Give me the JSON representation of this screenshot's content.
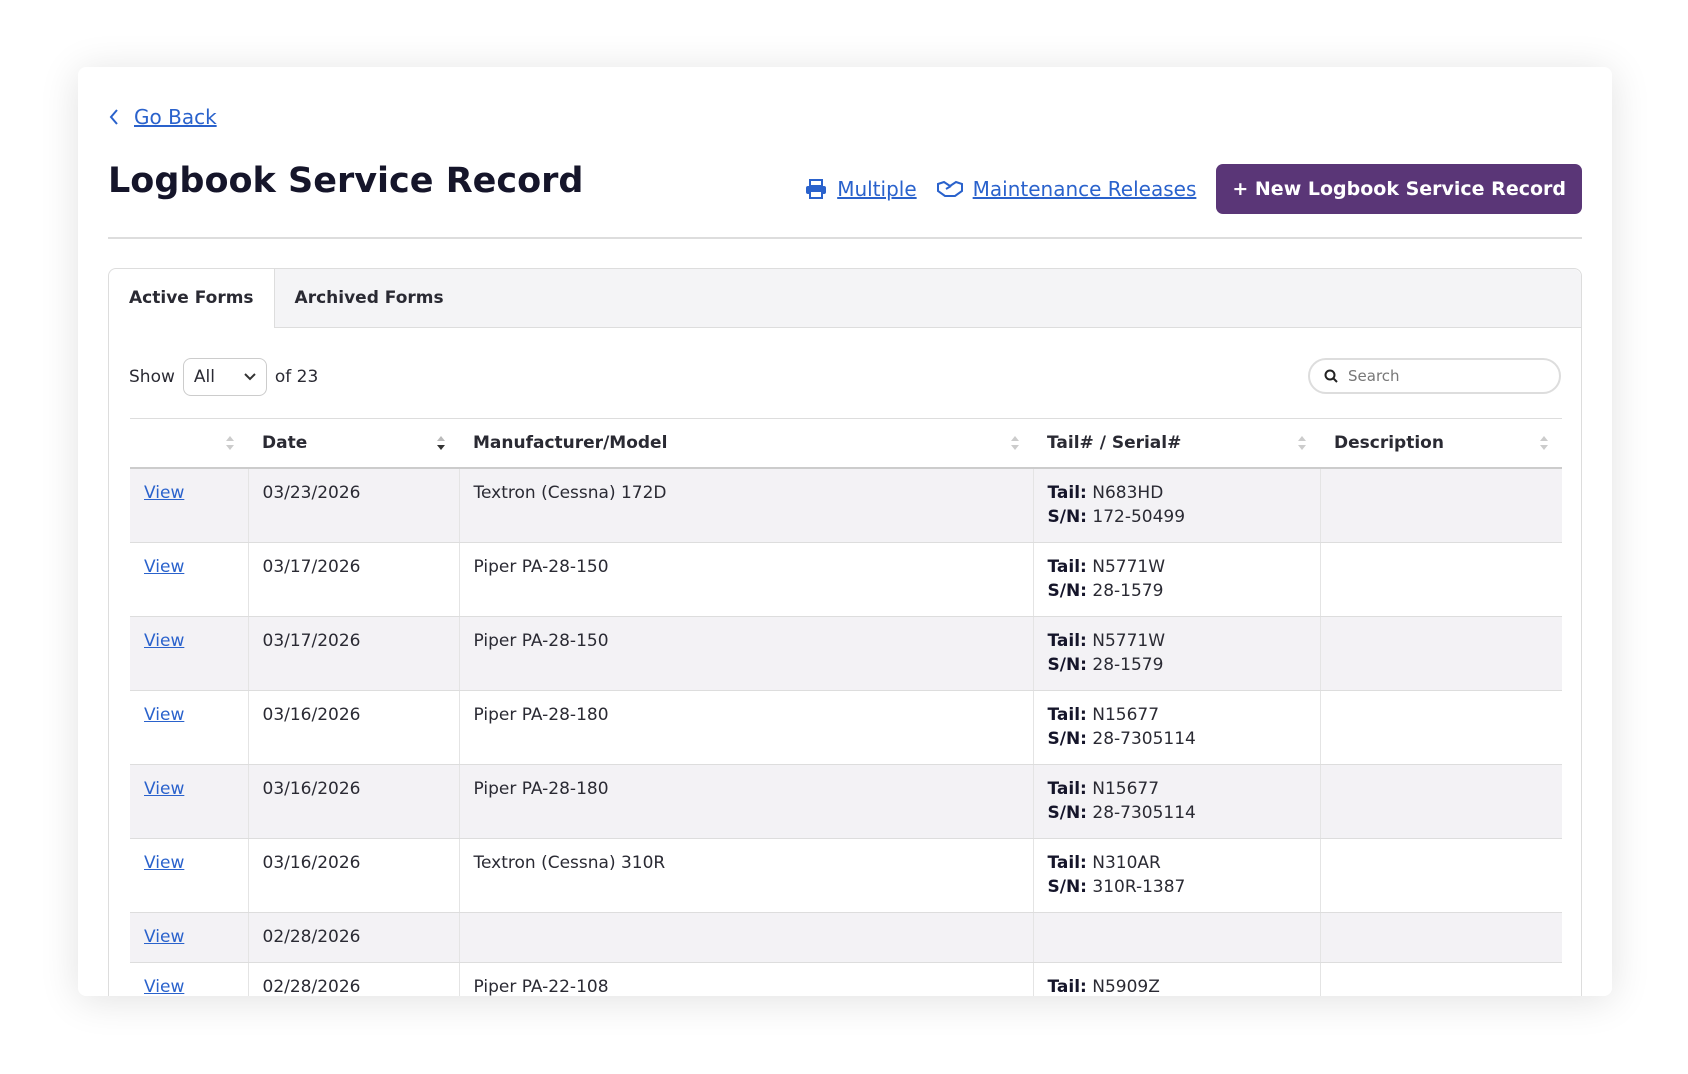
{
  "header": {
    "back": "Go Back",
    "title": "Logbook Service Record",
    "actions": [
      "Multiple",
      "Maintenance Releases"
    ],
    "new_button": "+ New Logbook Service Record"
  },
  "tabs": [
    "Active Forms",
    "Archived Forms"
  ],
  "controls": {
    "show": "Show",
    "page_size": "All",
    "count": "of 23",
    "search": "Search"
  },
  "table": {
    "columns": [
      "Date",
      "Manufacturer/Model",
      "Tail# / Serial#",
      "Description"
    ],
    "tail_label": "Tail:",
    "serial_label": "S/N:",
    "rows": [
      {
        "link": "View",
        "date": "03/23/2026",
        "model": "Textron (Cessna) 172D",
        "tail": "N683HD",
        "serial": "172-50499"
      },
      {
        "link": "View",
        "date": "03/17/2026",
        "model": "Piper PA-28-150",
        "tail": "N5771W",
        "serial": "28-1579"
      },
      {
        "link": "View",
        "date": "03/17/2026",
        "model": "Piper PA-28-150",
        "tail": "N5771W",
        "serial": "28-1579"
      },
      {
        "link": "View",
        "date": "03/16/2026",
        "model": "Piper PA-28-180",
        "tail": "N15677",
        "serial": "28-7305114"
      },
      {
        "link": "View",
        "date": "03/16/2026",
        "model": "Piper PA-28-180",
        "tail": "N15677",
        "serial": "28-7305114"
      },
      {
        "link": "View",
        "date": "03/16/2026",
        "model": "Textron (Cessna) 310R",
        "tail": "N310AR",
        "serial": "310R-1387"
      },
      {
        "link": "View",
        "date": "02/28/2026"
      },
      {
        "link": "View",
        "date": "02/28/2026",
        "model": "Piper PA-22-108",
        "tail": "N5909Z"
      }
    ]
  }
}
